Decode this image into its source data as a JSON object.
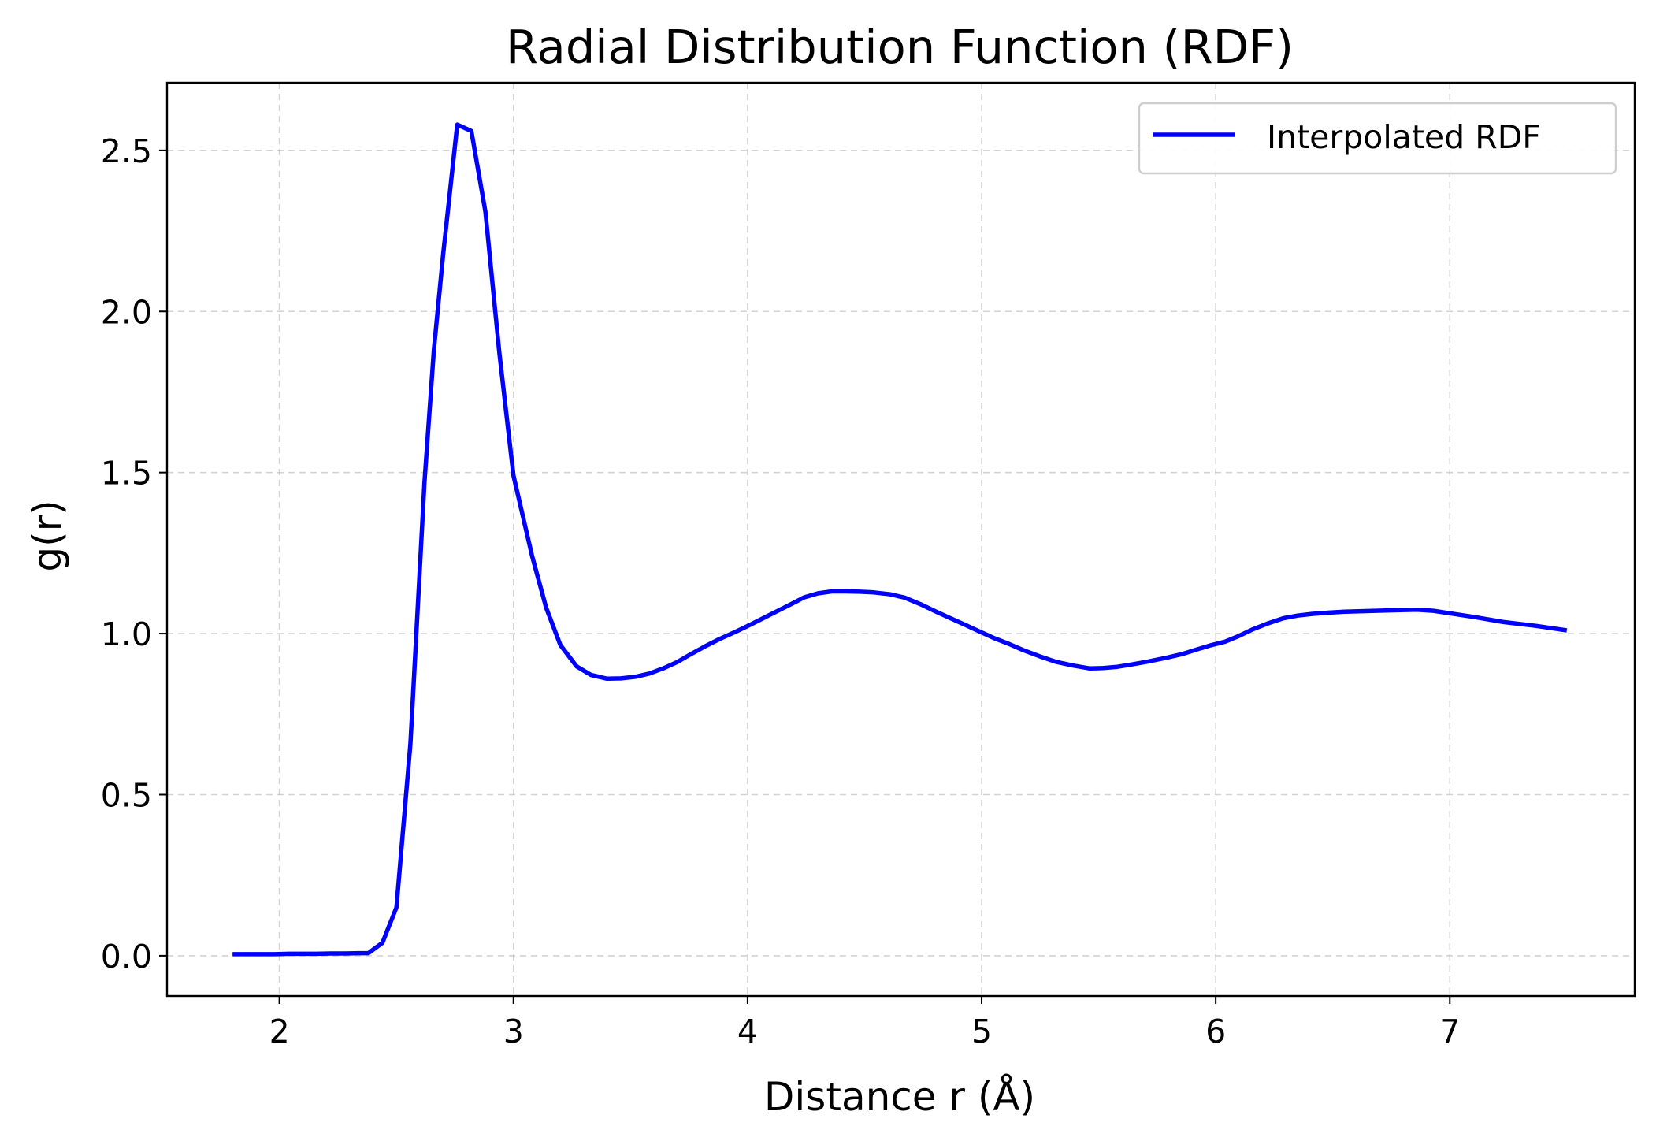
{
  "chart_data": {
    "type": "line",
    "title": "Radial Distribution Function (RDF)",
    "xlabel": "Distance r (Å)",
    "ylabel": "g(r)",
    "xlim": [
      1.52,
      7.79
    ],
    "ylim": [
      -0.125,
      2.71
    ],
    "xticks": [
      2,
      3,
      4,
      5,
      6,
      7
    ],
    "yticks": [
      0.0,
      0.5,
      1.0,
      1.5,
      2.0,
      2.5
    ],
    "xtick_labels": [
      "2",
      "3",
      "4",
      "5",
      "6",
      "7"
    ],
    "ytick_labels": [
      "0.0",
      "0.5",
      "1.0",
      "1.5",
      "2.0",
      "2.5"
    ],
    "grid": true,
    "legend_position": "top-right",
    "series": [
      {
        "name": "Interpolated RDF",
        "color": "#0000ff",
        "x": [
          1.8,
          1.86,
          1.92,
          1.98,
          2.04,
          2.1,
          2.16,
          2.22,
          2.28,
          2.34,
          2.38,
          2.44,
          2.5,
          2.56,
          2.62,
          2.66,
          2.7,
          2.76,
          2.82,
          2.88,
          2.94,
          3.0,
          3.08,
          3.14,
          3.2,
          3.27,
          3.33,
          3.4,
          3.46,
          3.52,
          3.58,
          3.64,
          3.7,
          3.76,
          3.82,
          3.88,
          3.95,
          4.01,
          4.07,
          4.13,
          4.19,
          4.24,
          4.3,
          4.36,
          4.42,
          4.48,
          4.54,
          4.61,
          4.67,
          4.74,
          4.8,
          4.86,
          4.93,
          4.99,
          5.05,
          5.12,
          5.18,
          5.25,
          5.32,
          5.39,
          5.46,
          5.52,
          5.58,
          5.64,
          5.71,
          5.79,
          5.86,
          5.92,
          5.98,
          6.04,
          6.1,
          6.16,
          6.22,
          6.29,
          6.35,
          6.41,
          6.48,
          6.55,
          6.64,
          6.74,
          6.86,
          6.93,
          7.0,
          7.1,
          7.23,
          7.37,
          7.5
        ],
        "y": [
          0.005,
          0.005,
          0.005,
          0.005,
          0.006,
          0.006,
          0.006,
          0.007,
          0.007,
          0.008,
          0.008,
          0.04,
          0.15,
          0.66,
          1.47,
          1.88,
          2.18,
          2.58,
          2.56,
          2.31,
          1.87,
          1.49,
          1.24,
          1.08,
          0.965,
          0.898,
          0.872,
          0.86,
          0.861,
          0.866,
          0.876,
          0.892,
          0.912,
          0.937,
          0.961,
          0.983,
          1.006,
          1.027,
          1.049,
          1.071,
          1.093,
          1.112,
          1.125,
          1.131,
          1.131,
          1.13,
          1.128,
          1.122,
          1.112,
          1.091,
          1.07,
          1.05,
          1.027,
          1.007,
          0.987,
          0.967,
          0.948,
          0.929,
          0.912,
          0.901,
          0.892,
          0.893,
          0.897,
          0.904,
          0.913,
          0.925,
          0.937,
          0.951,
          0.964,
          0.975,
          0.993,
          1.014,
          1.031,
          1.048,
          1.056,
          1.061,
          1.065,
          1.068,
          1.07,
          1.072,
          1.074,
          1.071,
          1.063,
          1.052,
          1.036,
          1.024,
          1.01
        ]
      }
    ]
  }
}
